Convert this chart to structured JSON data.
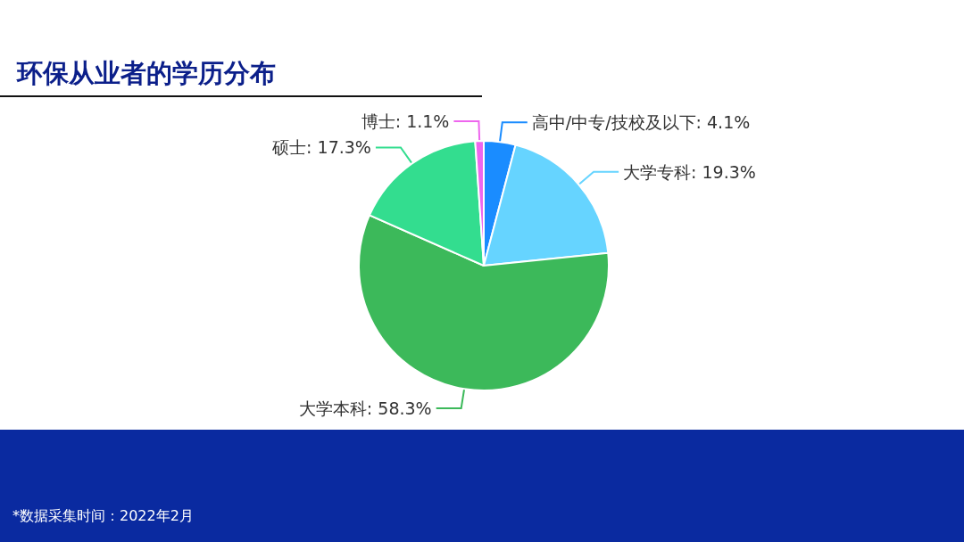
{
  "chart_data": {
    "type": "pie",
    "title": "环保从业者的学历分布",
    "categories": [
      "高中/中专/技校及以下",
      "大学专科",
      "大学本科",
      "硕士",
      "博士"
    ],
    "values": [
      4.1,
      19.3,
      58.3,
      17.3,
      1.1
    ],
    "colors": [
      "#1a8cff",
      "#66d4ff",
      "#3cb95a",
      "#33dd8f",
      "#ee66ee"
    ],
    "value_labels": [
      ": 4.1%",
      ": 19.3%",
      ": 58.3%",
      ": 17.3%",
      ": 1.1%"
    ],
    "legend": false,
    "annotations": [
      "*数据采集时间：2022年2月"
    ]
  }
}
